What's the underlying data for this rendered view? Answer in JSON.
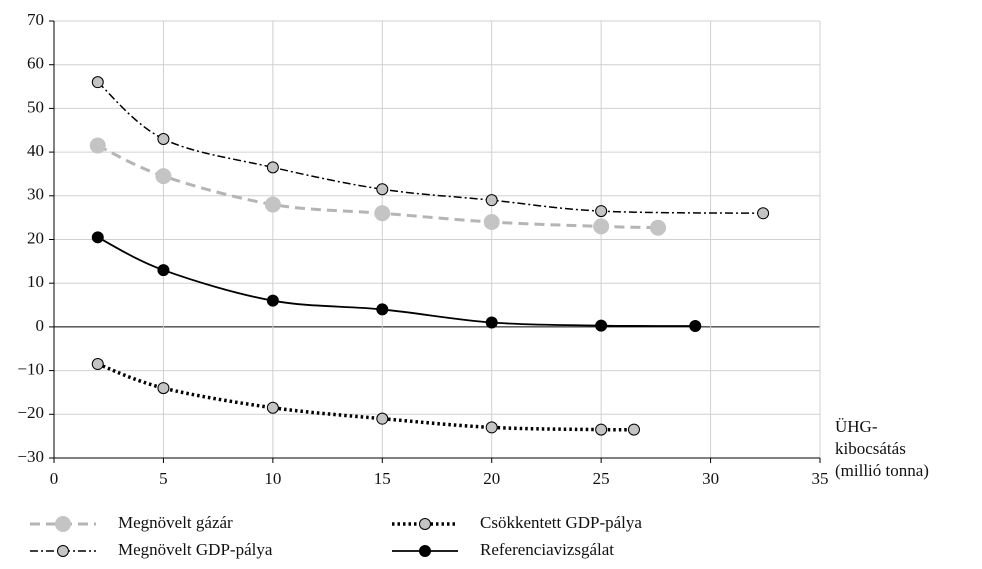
{
  "chart_data": {
    "type": "line",
    "x_label": [
      "ÜHG-",
      "kibocsátás",
      "(millió tonna)"
    ],
    "xlim": [
      0,
      35
    ],
    "xticks": [
      0,
      5,
      10,
      15,
      20,
      25,
      30,
      35
    ],
    "ylim": [
      -30,
      70
    ],
    "yticks": [
      {
        "value": -30,
        "label": "−30"
      },
      {
        "value": -20,
        "label": "−20"
      },
      {
        "value": -10,
        "label": "−10"
      },
      0,
      10,
      20,
      30,
      40,
      50,
      60,
      70
    ],
    "grid": true,
    "legend": "bottom",
    "series": [
      {
        "name": "Megnövelt gázár",
        "color": "#b5b5b5",
        "marker_color": "#c4c4c4",
        "line_style": "dashed",
        "marker_size": "large",
        "x": [
          2,
          5,
          10,
          15,
          20,
          25,
          27.6
        ],
        "values": [
          41.5,
          34.5,
          28,
          26,
          24,
          23,
          22.7
        ]
      },
      {
        "name": "Megnövelt GDP-pálya",
        "color": "#000000",
        "marker_color": "#c4c4c4",
        "line_style": "dashdot",
        "marker_size": "small",
        "x": [
          2,
          5,
          10,
          15,
          20,
          25,
          32.4
        ],
        "values": [
          56,
          43,
          36.5,
          31.5,
          29,
          26.5,
          26
        ]
      },
      {
        "name": "Csökkentett GDP-pálya",
        "color": "#000000",
        "marker_color": "#c4c4c4",
        "line_style": "dotted",
        "marker_size": "small",
        "x": [
          2,
          5,
          10,
          15,
          20,
          25,
          26.5
        ],
        "values": [
          -8.5,
          -14,
          -18.5,
          -21,
          -23,
          -23.5,
          -23.5
        ]
      },
      {
        "name": "Referenciavizsgálat",
        "color": "#000000",
        "marker_color": "#000000",
        "line_style": "solid",
        "marker_size": "small",
        "x": [
          2,
          5,
          10,
          15,
          20,
          25,
          29.3
        ],
        "values": [
          20.5,
          13,
          6,
          4,
          1,
          0.3,
          0.2
        ]
      }
    ]
  }
}
